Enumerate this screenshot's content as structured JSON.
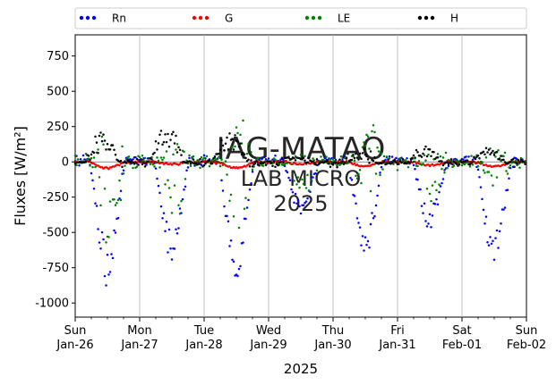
{
  "chart_data": {
    "type": "scatter",
    "ylabel": "Fluxes [W/m²]",
    "xlabel": "2025",
    "ylim": [
      -1100,
      900
    ],
    "yticks": [
      -1000,
      -750,
      -500,
      -250,
      0,
      250,
      500,
      750
    ],
    "xlim": [
      0,
      7
    ],
    "xticks": [
      {
        "x": 0,
        "day": "Sun",
        "date": "Jan-26"
      },
      {
        "x": 1,
        "day": "Mon",
        "date": "Jan-27"
      },
      {
        "x": 2,
        "day": "Tue",
        "date": "Jan-28"
      },
      {
        "x": 3,
        "day": "Wed",
        "date": "Jan-29"
      },
      {
        "x": 4,
        "day": "Thu",
        "date": "Jan-30"
      },
      {
        "x": 5,
        "day": "Fri",
        "date": "Jan-31"
      },
      {
        "x": 6,
        "day": "Sat",
        "date": "Feb-01"
      },
      {
        "x": 7,
        "day": "Sun",
        "date": "Feb-02"
      }
    ],
    "grid": "vertical",
    "legend": {
      "placement": "top",
      "columns": 4
    },
    "watermark": [
      "IAG-MATAO",
      "LAB MICRO",
      "2025"
    ],
    "series": [
      {
        "name": "Rn",
        "color": "#0000ff",
        "daily_min": [
          -780,
          -620,
          -780,
          -330,
          -580,
          -430,
          -650
        ],
        "noon_shift": 0.0
      },
      {
        "name": "G",
        "color": "#ff0000",
        "daily_min": [
          -45,
          -15,
          -45,
          -15,
          -30,
          -25,
          -30
        ],
        "noon_shift": 0.0
      },
      {
        "name": "LE",
        "color": "#008000",
        "daily_min": [
          -650,
          -470,
          -480,
          -290,
          -280,
          -300,
          -240
        ],
        "daily_max": [
          285,
          140,
          295,
          60,
          315,
          60,
          80
        ],
        "noon_shift": 0.05
      },
      {
        "name": "H",
        "color": "#000000",
        "daily_max": [
          215,
          300,
          230,
          40,
          80,
          110,
          100
        ],
        "noon_shift": -0.08
      }
    ]
  }
}
